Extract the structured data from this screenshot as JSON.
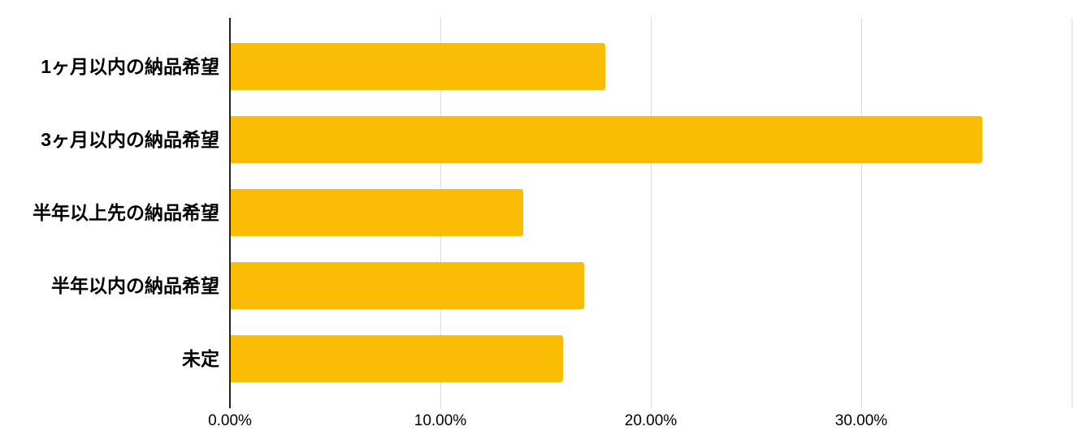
{
  "chart_data": {
    "type": "bar",
    "orientation": "horizontal",
    "title": "",
    "xlabel": "",
    "ylabel": "",
    "categories": [
      "1ヶ月以内の納品希望",
      "3ヶ月以内の納品希望",
      "半年以上先の納品希望",
      "半年以内の納品希望",
      "未定"
    ],
    "values": [
      17.8,
      35.7,
      13.9,
      16.8,
      15.8
    ],
    "value_unit": "%",
    "xlim": [
      0,
      40
    ],
    "x_ticks": [
      {
        "pct": 0,
        "label": "0.00%"
      },
      {
        "pct": 10,
        "label": "10.00%"
      },
      {
        "pct": 20,
        "label": "20.00%"
      },
      {
        "pct": 30,
        "label": "30.00%"
      },
      {
        "pct": 40,
        "label": ""
      }
    ],
    "grid": true,
    "legend": false,
    "colors": {
      "bar": "#FBBC04",
      "axis_line": "#212121",
      "gridline": "#D9D9D9",
      "category_label": "#000000",
      "tick_label": "#000000",
      "background": "#FFFFFF"
    }
  }
}
